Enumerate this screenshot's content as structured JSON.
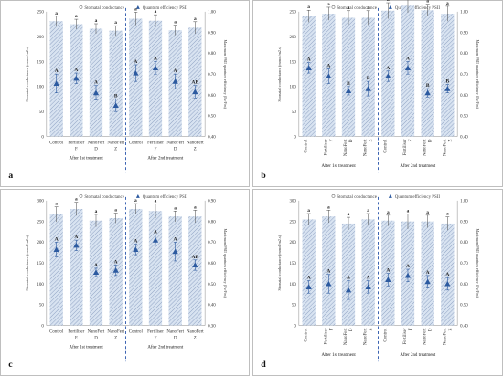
{
  "chart_data": [
    {
      "panel_label": "a",
      "type": "bar",
      "legend": [
        "Stomatal conductance",
        "Quantum efficiency PSII"
      ],
      "categories": [
        [
          "Control",
          ""
        ],
        [
          "Fertiliser",
          "F"
        ],
        [
          "NanoFert",
          "D"
        ],
        [
          "NanoFert",
          "Z"
        ],
        [
          "Control",
          ""
        ],
        [
          "Fertiliser",
          "F"
        ],
        [
          "NanoFert",
          "D"
        ],
        [
          "NanoFert",
          "Z"
        ]
      ],
      "groups": [
        "After 1st treatment",
        "After 2nd treatment"
      ],
      "ylabel": "Stomatal conductance (mmol/m2.s)",
      "y2label": "Maximum PSII quantum efficiency (Fv/Fm)",
      "ylim": [
        0,
        250
      ],
      "yticks": [
        "0",
        "50",
        "100",
        "150",
        "200",
        "250"
      ],
      "y2lim": [
        0.4,
        1.0
      ],
      "y2ticks": [
        "0.40",
        "0.50",
        "0.60",
        "0.70",
        "0.80",
        "0.90",
        "1.00"
      ],
      "series": [
        {
          "name": "Stomatal conductance",
          "values": [
            231,
            225,
            216,
            212,
            236,
            232,
            213,
            218
          ],
          "errors": [
            10,
            10,
            10,
            10,
            13,
            12,
            10,
            12
          ],
          "letters": [
            "a",
            "a",
            "a",
            "a",
            "a",
            "a",
            "a",
            "a"
          ]
        },
        {
          "name": "Quantum efficiency PSII",
          "values": [
            0.655,
            0.68,
            0.61,
            0.55,
            0.705,
            0.73,
            0.665,
            0.615
          ],
          "errors": [
            0.045,
            0.025,
            0.035,
            0.03,
            0.04,
            0.03,
            0.035,
            0.03
          ],
          "letters": [
            "A",
            "A",
            "A",
            "B",
            "A",
            "A",
            "A",
            "AB"
          ]
        }
      ]
    },
    {
      "panel_label": "b",
      "type": "bar",
      "legend": [
        "Stomatal conductance",
        "Quantum efficiency PSII"
      ],
      "categories": [
        [
          "Control",
          ""
        ],
        [
          "Fertiliser",
          "F"
        ],
        [
          "NanoFert",
          "D"
        ],
        [
          "NanoFert",
          "Z"
        ],
        [
          "Control",
          ""
        ],
        [
          "Fertiliser",
          "F"
        ],
        [
          "NanoFert",
          "D"
        ],
        [
          "NanoFert",
          "Z"
        ]
      ],
      "groups": [
        "After 1st treatment",
        "After 2nd treatment"
      ],
      "ylabel": "Stomatal conductance (mmol/m2.s)",
      "y2label": "Maximum PSII quantum efficiency (Fv/Fm)",
      "ylim": [
        0,
        250
      ],
      "yticks": [
        "0",
        "50",
        "100",
        "150",
        "200",
        "250"
      ],
      "y2lim": [
        0.4,
        1.0
      ],
      "y2ticks": [
        "0.40",
        "0.50",
        "0.60",
        "0.70",
        "0.80",
        "0.90",
        "1.00"
      ],
      "series": [
        {
          "name": "Stomatal conductance",
          "values": [
            241,
            246,
            238,
            238,
            252,
            262,
            253,
            246
          ],
          "errors": [
            12,
            13,
            14,
            14,
            16,
            14,
            12,
            15
          ],
          "letters": [
            "a",
            "a",
            "a",
            "a",
            "a",
            "a",
            "a",
            "a"
          ]
        },
        {
          "name": "Quantum efficiency PSII",
          "values": [
            0.73,
            0.69,
            0.62,
            0.63,
            0.69,
            0.73,
            0.61,
            0.63
          ],
          "errors": [
            0.025,
            0.035,
            0.02,
            0.035,
            0.025,
            0.03,
            0.02,
            0.02
          ],
          "letters": [
            "A",
            "A",
            "B",
            "B",
            "A",
            "A",
            "B",
            "B"
          ]
        }
      ]
    },
    {
      "panel_label": "c",
      "type": "bar",
      "legend": [
        "Stomatal conductance",
        "Quantum efficiency PSII"
      ],
      "categories": [
        [
          "Control",
          ""
        ],
        [
          "Fertiliser",
          "F"
        ],
        [
          "NanoFert",
          "D"
        ],
        [
          "NanoFert",
          "Z"
        ],
        [
          "Control",
          ""
        ],
        [
          "Fertiliser",
          "F"
        ],
        [
          "NanoFert",
          "D"
        ],
        [
          "NanoFert",
          "Z"
        ]
      ],
      "groups": [
        "After 1st treatment",
        "After 2nd treatment"
      ],
      "ylabel": "Stomatal conductance (mmol/m2.s)",
      "y2label": "Maximum PSII quantum efficiency (Fv/Fm)",
      "ylim": [
        0,
        300
      ],
      "yticks": [
        "0",
        "50",
        "100",
        "150",
        "200",
        "250",
        "300"
      ],
      "y2lim": [
        0.3,
        0.9
      ],
      "y2ticks": [
        "0.30",
        "0.40",
        "0.50",
        "0.60",
        "0.70",
        "0.80",
        "0.90"
      ],
      "series": [
        {
          "name": "Stomatal conductance",
          "values": [
            267,
            280,
            252,
            258,
            280,
            275,
            262,
            262
          ],
          "errors": [
            18,
            16,
            15,
            12,
            13,
            17,
            13,
            15
          ],
          "letters": [
            "a",
            "a",
            "a",
            "a",
            "a",
            "a",
            "a",
            "a"
          ]
        },
        {
          "name": "Quantum efficiency PSII",
          "values": [
            0.665,
            0.685,
            0.555,
            0.565,
            0.665,
            0.71,
            0.655,
            0.59
          ],
          "errors": [
            0.035,
            0.025,
            0.02,
            0.025,
            0.025,
            0.025,
            0.045,
            0.025
          ],
          "letters": [
            "A",
            "A",
            "A",
            "A",
            "A",
            "A",
            "A",
            "AB"
          ]
        }
      ]
    },
    {
      "panel_label": "d",
      "type": "bar",
      "legend": [
        "Stomatal conductance",
        "Quantum efficiency PSII"
      ],
      "categories": [
        [
          "Control",
          ""
        ],
        [
          "Fertiliser",
          "F"
        ],
        [
          "NanoFert",
          "D"
        ],
        [
          "NanoFert",
          "Z"
        ],
        [
          "Control",
          ""
        ],
        [
          "Fertiliser",
          "F"
        ],
        [
          "NanoFert",
          "D"
        ],
        [
          "NanoFert",
          "Z"
        ]
      ],
      "groups": [
        "After 1st treatment",
        "After 2nd treatment"
      ],
      "ylabel": "Stomatal conductance (mmol/m2.s)",
      "y2label": "Maximum PSII quantum efficiency (Fv/Fm)",
      "ylim": [
        0,
        300
      ],
      "yticks": [
        "0",
        "50",
        "100",
        "150",
        "200",
        "250",
        "300"
      ],
      "y2lim": [
        0.4,
        1.0
      ],
      "y2ticks": [
        "0.40",
        "0.50",
        "0.60",
        "0.70",
        "0.80",
        "0.90",
        "1.00"
      ],
      "series": [
        {
          "name": "Stomatal conductance",
          "values": [
            255,
            262,
            245,
            255,
            252,
            250,
            250,
            245
          ],
          "errors": [
            14,
            15,
            15,
            14,
            13,
            18,
            15,
            16
          ],
          "letters": [
            "a",
            "a",
            "a",
            "a",
            "a",
            "a",
            "a",
            "a"
          ]
        },
        {
          "name": "Quantum efficiency PSII",
          "values": [
            0.585,
            0.6,
            0.57,
            0.585,
            0.62,
            0.64,
            0.61,
            0.6
          ],
          "errors": [
            0.03,
            0.045,
            0.045,
            0.03,
            0.03,
            0.03,
            0.03,
            0.03
          ],
          "letters": [
            "A",
            "A",
            "A",
            "A",
            "A",
            "A",
            "A",
            "A"
          ]
        }
      ]
    }
  ],
  "colors": {
    "bar_fill": "#d8e3f1",
    "bar_hatch": "#6f86b0",
    "marker": "#2c5aa0",
    "divider": "#3b63b2",
    "axis": "#888888"
  }
}
